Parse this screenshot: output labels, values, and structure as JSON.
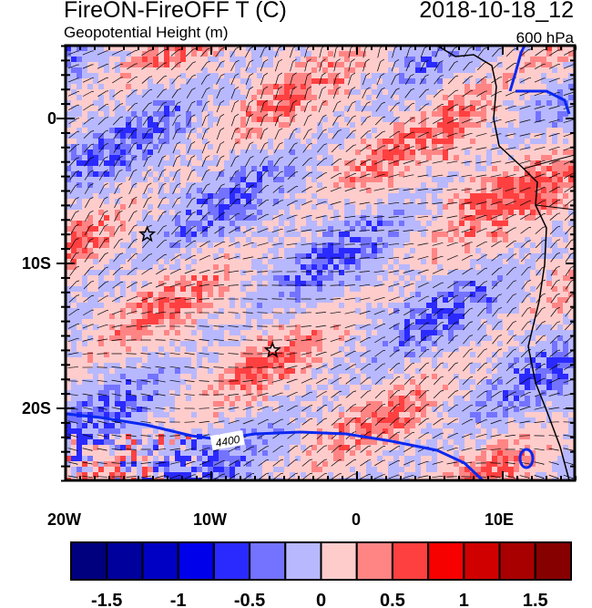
{
  "header": {
    "title": "FireON-FireOFF T (C)",
    "datetime": "2018-10-18_12",
    "subtitle": "Geopotential Height (m)",
    "level": "600 hPa"
  },
  "map": {
    "lon_labels": [
      "20W",
      "10W",
      "0",
      "10E"
    ],
    "lat_labels": [
      "0",
      "10S",
      "20S"
    ],
    "contour_label": "4400",
    "markers": [
      {
        "type": "star",
        "lon": -14.4,
        "lat": -8.0
      },
      {
        "type": "star",
        "lon": -5.8,
        "lat": -16.0
      }
    ]
  },
  "colorbar": {
    "colors": [
      "#00007f",
      "#00009c",
      "#0000c4",
      "#0000eb",
      "#2a2aff",
      "#7373ff",
      "#b8b8ff",
      "#ffcccc",
      "#ff8585",
      "#ff4040",
      "#f70000",
      "#d00000",
      "#a80000",
      "#870000"
    ],
    "labels": [
      "-1.5",
      "-1",
      "-0.5",
      "0",
      "0.5",
      "1",
      "1.5"
    ]
  }
}
